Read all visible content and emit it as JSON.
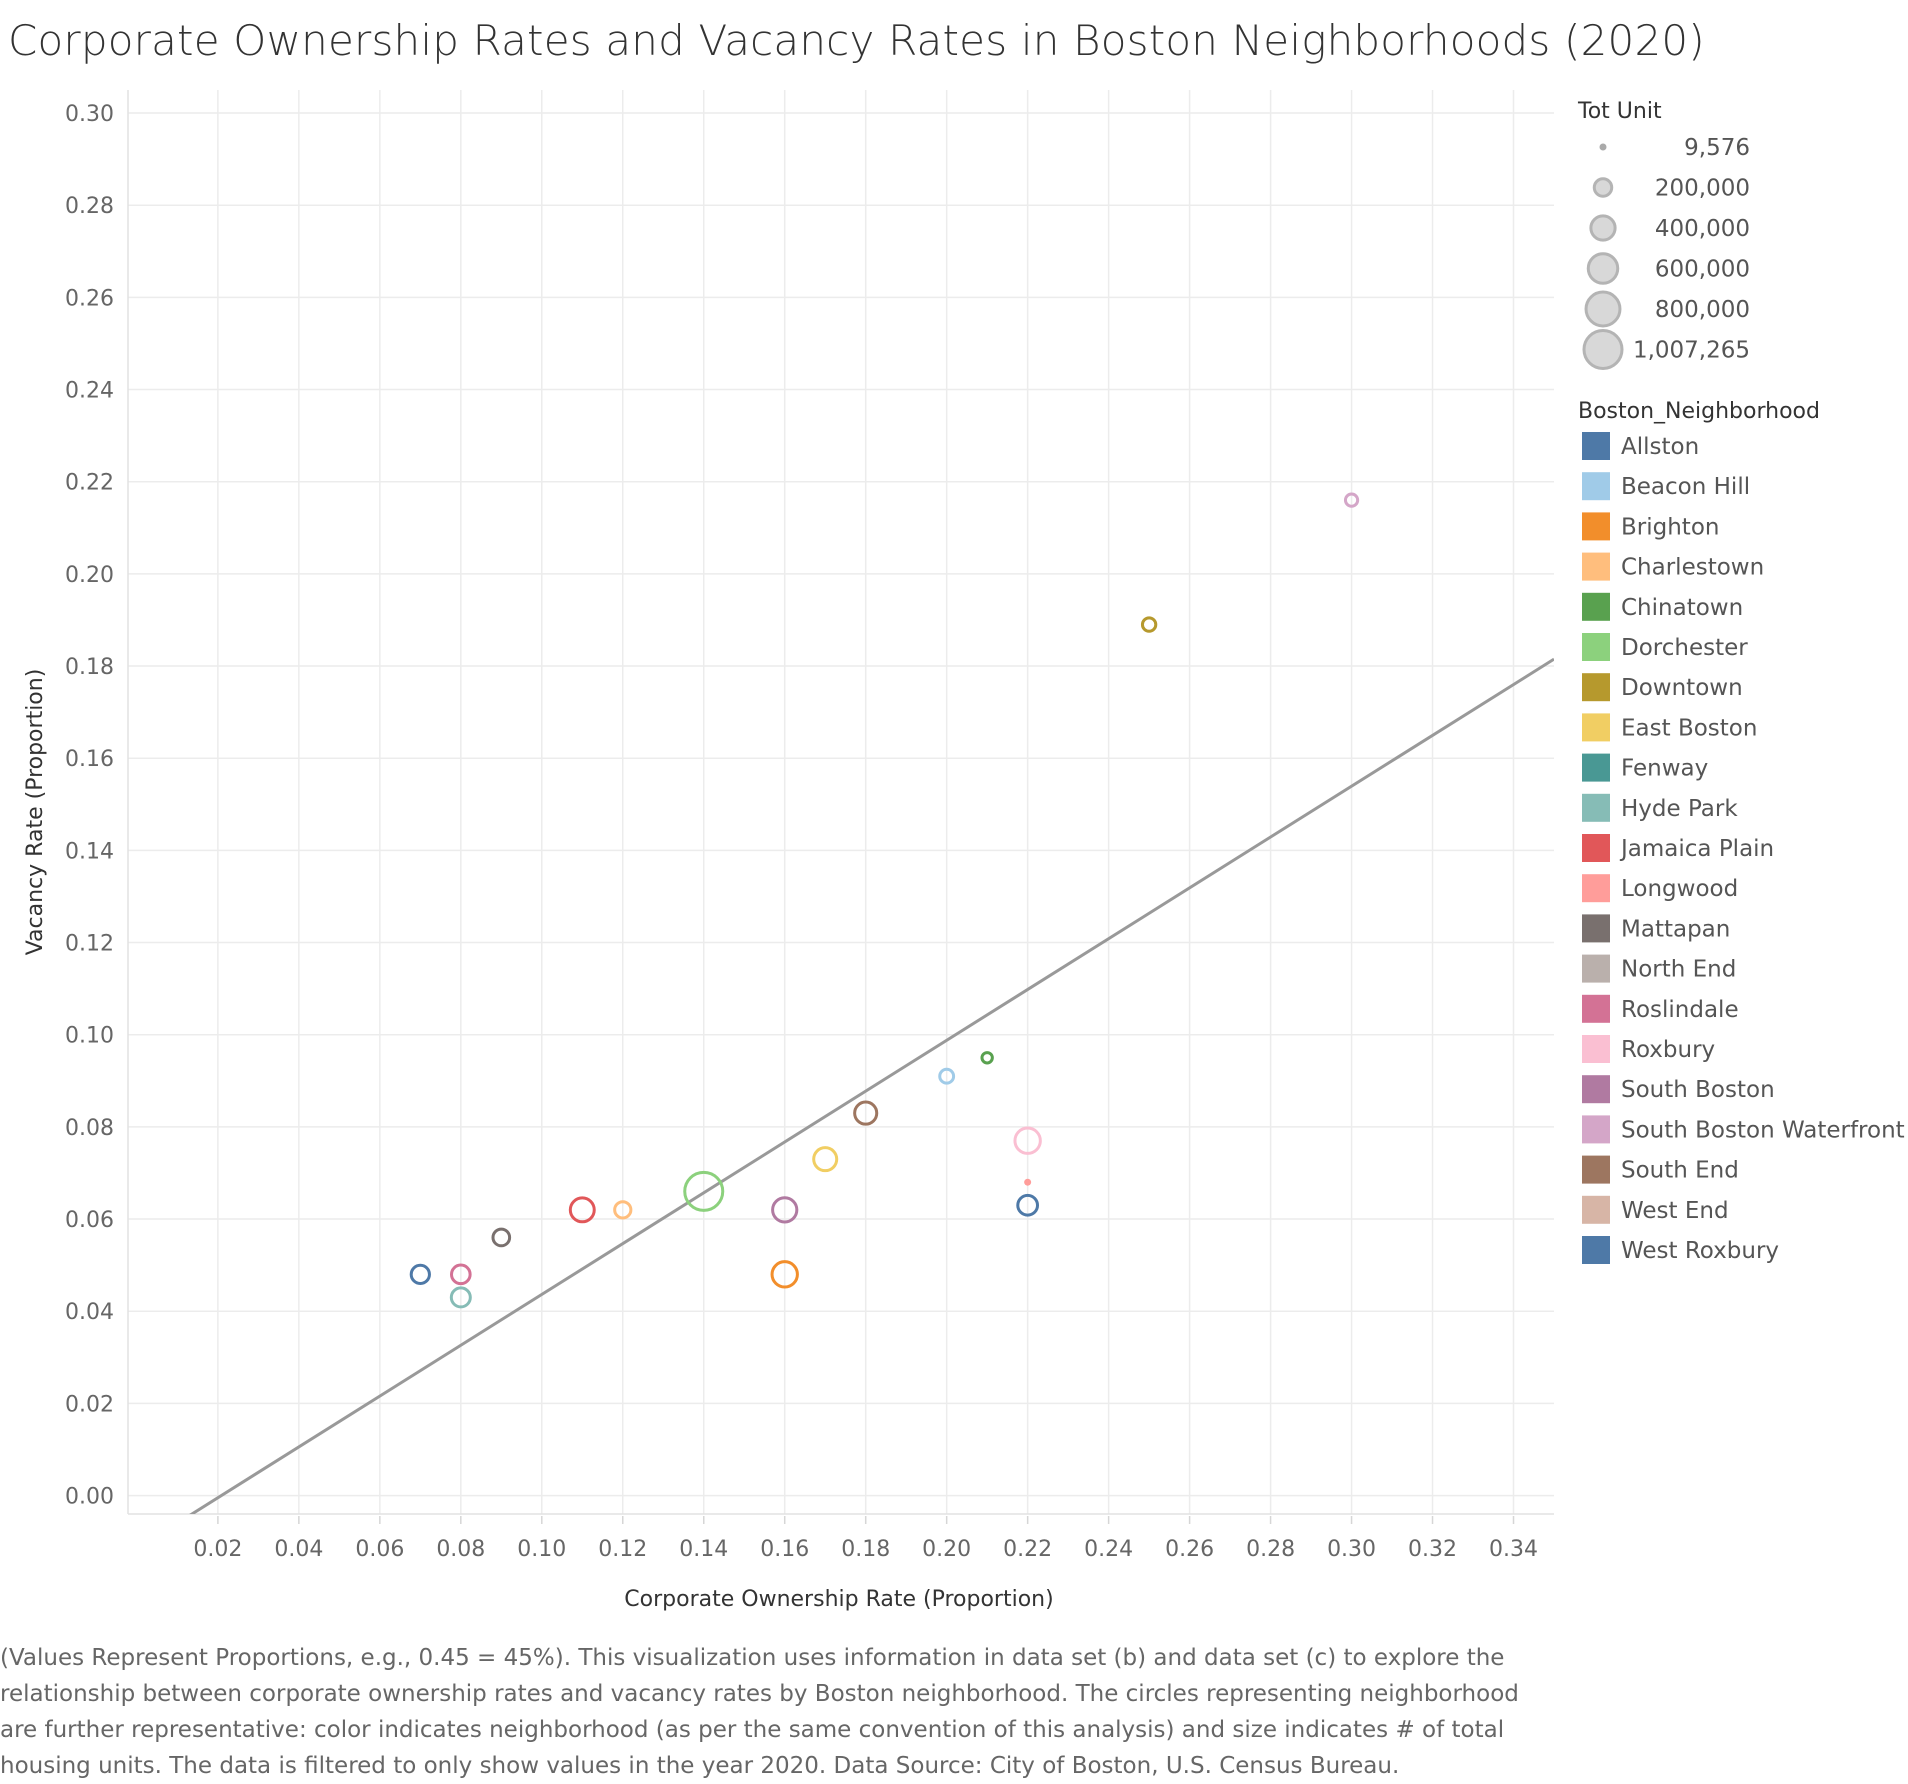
{
  "title": "Corporate Ownership Rates and Vacancy Rates in Boston Neighborhoods (2020)",
  "caption": "(Values Represent Proportions, e.g., 0.45 = 45%). This visualization uses information in data set (b) and data set (c) to explore the relationship between corporate ownership rates and vacancy rates by Boston neighborhood. The circles representing neighborhood are further representative: color indicates neighborhood (as per the same convention of this analysis) and size indicates # of total housing units. The data is filtered to only show values in the year 2020. Data Source: City of Boston, U.S. Census Bureau.",
  "chart_data": {
    "type": "scatter",
    "title": "Corporate Ownership Rates and Vacancy Rates in Boston Neighborhoods (2020)",
    "xlabel": "Corporate Ownership Rate (Proportion)",
    "ylabel": "Vacancy Rate (Proportion)",
    "xlim": [
      -0.0022,
      0.35
    ],
    "ylim": [
      -0.004,
      0.305
    ],
    "xticks": [
      "0.02",
      "0.04",
      "0.06",
      "0.08",
      "0.10",
      "0.12",
      "0.14",
      "0.16",
      "0.18",
      "0.20",
      "0.22",
      "0.24",
      "0.26",
      "0.28",
      "0.30",
      "0.32",
      "0.34"
    ],
    "yticks": [
      "0.00",
      "0.02",
      "0.04",
      "0.06",
      "0.08",
      "0.10",
      "0.12",
      "0.14",
      "0.16",
      "0.18",
      "0.20",
      "0.22",
      "0.24",
      "0.26",
      "0.28",
      "0.30"
    ],
    "grid": true,
    "trend_line": {
      "x": [
        0.0,
        0.35
      ],
      "y": [
        -0.0115,
        0.1815
      ]
    },
    "size_legend": {
      "title": "Tot Unit",
      "entries": [
        "9,576",
        "200,000",
        "400,000",
        "600,000",
        "800,000",
        "1,007,265"
      ],
      "values": [
        9576,
        200000,
        400000,
        600000,
        800000,
        1007265
      ],
      "range": [
        9576,
        1007265
      ]
    },
    "color_legend": {
      "title": "Boston_Neighborhood",
      "placement": "right",
      "entries": [
        {
          "name": "Allston",
          "color": "#4e79a7"
        },
        {
          "name": "Beacon Hill",
          "color": "#a0cbe8"
        },
        {
          "name": "Brighton",
          "color": "#f28e2b"
        },
        {
          "name": "Charlestown",
          "color": "#ffbe7d"
        },
        {
          "name": "Chinatown",
          "color": "#59a14f"
        },
        {
          "name": "Dorchester",
          "color": "#8cd17d"
        },
        {
          "name": "Downtown",
          "color": "#b6992d"
        },
        {
          "name": "East Boston",
          "color": "#f1ce63"
        },
        {
          "name": "Fenway",
          "color": "#499894"
        },
        {
          "name": "Hyde Park",
          "color": "#86bcb6"
        },
        {
          "name": "Jamaica Plain",
          "color": "#e15759"
        },
        {
          "name": "Longwood",
          "color": "#ff9d9a"
        },
        {
          "name": "Mattapan",
          "color": "#79706e"
        },
        {
          "name": "North End",
          "color": "#bab0ac"
        },
        {
          "name": "Roslindale",
          "color": "#d37295"
        },
        {
          "name": "Roxbury",
          "color": "#fabfd2"
        },
        {
          "name": "South Boston",
          "color": "#b07aa1"
        },
        {
          "name": "South Boston Waterfront",
          "color": "#d4a6c8"
        },
        {
          "name": "South End",
          "color": "#9d7660"
        },
        {
          "name": "West End",
          "color": "#d7b5a6"
        },
        {
          "name": "West Roxbury",
          "color": "#4e79a7"
        }
      ]
    },
    "points": [
      {
        "name": "Allston",
        "x": 0.07,
        "y": 0.048,
        "units": 220000,
        "color": "#4e79a7"
      },
      {
        "name": "Beacon Hill",
        "x": 0.2,
        "y": 0.091,
        "units": 120000,
        "color": "#a0cbe8"
      },
      {
        "name": "Brighton",
        "x": 0.16,
        "y": 0.048,
        "units": 440000,
        "color": "#f28e2b"
      },
      {
        "name": "Charlestown",
        "x": 0.12,
        "y": 0.062,
        "units": 170000,
        "color": "#ffbe7d"
      },
      {
        "name": "Chinatown",
        "x": 0.21,
        "y": 0.095,
        "units": 60000,
        "color": "#59a14f"
      },
      {
        "name": "Dorchester",
        "x": 0.14,
        "y": 0.066,
        "units": 1007265,
        "color": "#8cd17d"
      },
      {
        "name": "Downtown",
        "x": 0.25,
        "y": 0.189,
        "units": 110000,
        "color": "#b6992d"
      },
      {
        "name": "East Boston",
        "x": 0.17,
        "y": 0.073,
        "units": 360000,
        "color": "#f1ce63"
      },
      {
        "name": "Hyde Park",
        "x": 0.08,
        "y": 0.043,
        "units": 240000,
        "color": "#86bcb6"
      },
      {
        "name": "Jamaica Plain",
        "x": 0.11,
        "y": 0.062,
        "units": 390000,
        "color": "#e15759"
      },
      {
        "name": "Longwood",
        "x": 0.22,
        "y": 0.068,
        "units": 9576,
        "color": "#ff9d9a"
      },
      {
        "name": "Mattapan",
        "x": 0.09,
        "y": 0.056,
        "units": 180000,
        "color": "#79706e"
      },
      {
        "name": "Roslindale",
        "x": 0.08,
        "y": 0.048,
        "units": 230000,
        "color": "#d37295"
      },
      {
        "name": "Roxbury",
        "x": 0.22,
        "y": 0.077,
        "units": 440000,
        "color": "#fabfd2"
      },
      {
        "name": "South Boston",
        "x": 0.16,
        "y": 0.062,
        "units": 400000,
        "color": "#b07aa1"
      },
      {
        "name": "South Boston Waterfront",
        "x": 0.3,
        "y": 0.216,
        "units": 90000,
        "color": "#d4a6c8"
      },
      {
        "name": "South End",
        "x": 0.18,
        "y": 0.083,
        "units": 330000,
        "color": "#9d7660"
      },
      {
        "name": "West Roxbury",
        "x": 0.22,
        "y": 0.063,
        "units": 260000,
        "color": "#4e79a7"
      }
    ]
  }
}
